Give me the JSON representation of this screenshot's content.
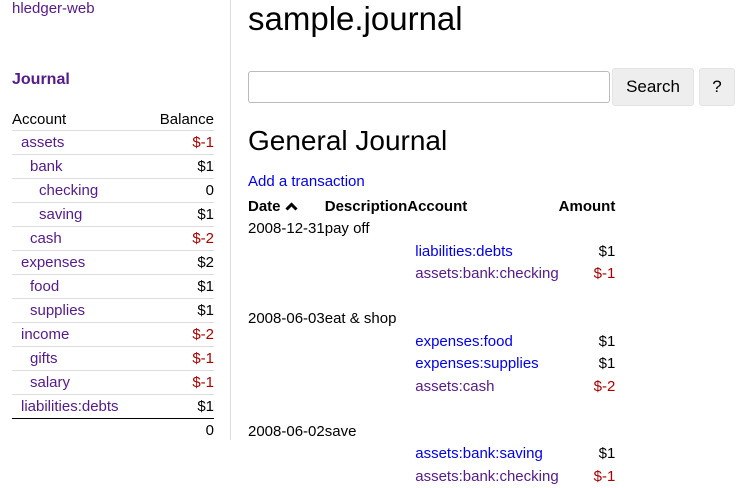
{
  "app": {
    "brand": "hledger-web",
    "journal_link": "Journal"
  },
  "sidebar": {
    "headers": {
      "account": "Account",
      "balance": "Balance"
    },
    "rows": [
      {
        "name": "assets",
        "balance": "$-1",
        "depth": 0,
        "negative": true
      },
      {
        "name": "bank",
        "balance": "$1",
        "depth": 1,
        "negative": false
      },
      {
        "name": "checking",
        "balance": "0",
        "depth": 2,
        "negative": false
      },
      {
        "name": "saving",
        "balance": "$1",
        "depth": 2,
        "negative": false
      },
      {
        "name": "cash",
        "balance": "$-2",
        "depth": 1,
        "negative": true
      },
      {
        "name": "expenses",
        "balance": "$2",
        "depth": 0,
        "negative": false
      },
      {
        "name": "food",
        "balance": "$1",
        "depth": 1,
        "negative": false
      },
      {
        "name": "supplies",
        "balance": "$1",
        "depth": 1,
        "negative": false
      },
      {
        "name": "income",
        "balance": "$-2",
        "depth": 0,
        "negative": true
      },
      {
        "name": "gifts",
        "balance": "$-1",
        "depth": 1,
        "negative": true
      },
      {
        "name": "salary",
        "balance": "$-1",
        "depth": 1,
        "negative": true
      },
      {
        "name": "liabilities:debts",
        "balance": "$1",
        "depth": 0,
        "negative": false
      }
    ],
    "total": "0"
  },
  "main": {
    "title": "sample.journal",
    "search": {
      "value": "",
      "button": "Search",
      "help": "?"
    },
    "heading": "General Journal",
    "add_link": "Add a transaction",
    "columns": {
      "date": "Date",
      "sort_icon": "chevron-up-icon",
      "description": "Description",
      "account": "Account",
      "amount": "Amount"
    },
    "transactions": [
      {
        "date": "2008-12-31",
        "description": "pay off",
        "postings": [
          {
            "account": "liabilities:debts",
            "amount": "$1",
            "visited": false
          },
          {
            "account": "assets:bank:checking",
            "amount": "$-1",
            "visited": true
          }
        ]
      },
      {
        "date": "2008-06-03",
        "description": "eat & shop",
        "postings": [
          {
            "account": "expenses:food",
            "amount": "$1",
            "visited": false
          },
          {
            "account": "expenses:supplies",
            "amount": "$1",
            "visited": false
          },
          {
            "account": "assets:cash",
            "amount": "$-2",
            "visited": true
          }
        ]
      },
      {
        "date": "2008-06-02",
        "description": "save",
        "postings": [
          {
            "account": "assets:bank:saving",
            "amount": "$1",
            "visited": false
          },
          {
            "account": "assets:bank:checking",
            "amount": "$-1",
            "visited": true
          }
        ]
      }
    ]
  },
  "colors": {
    "visited_link": "#551a8b",
    "link": "#0000ee",
    "negative": "#aa0000"
  }
}
